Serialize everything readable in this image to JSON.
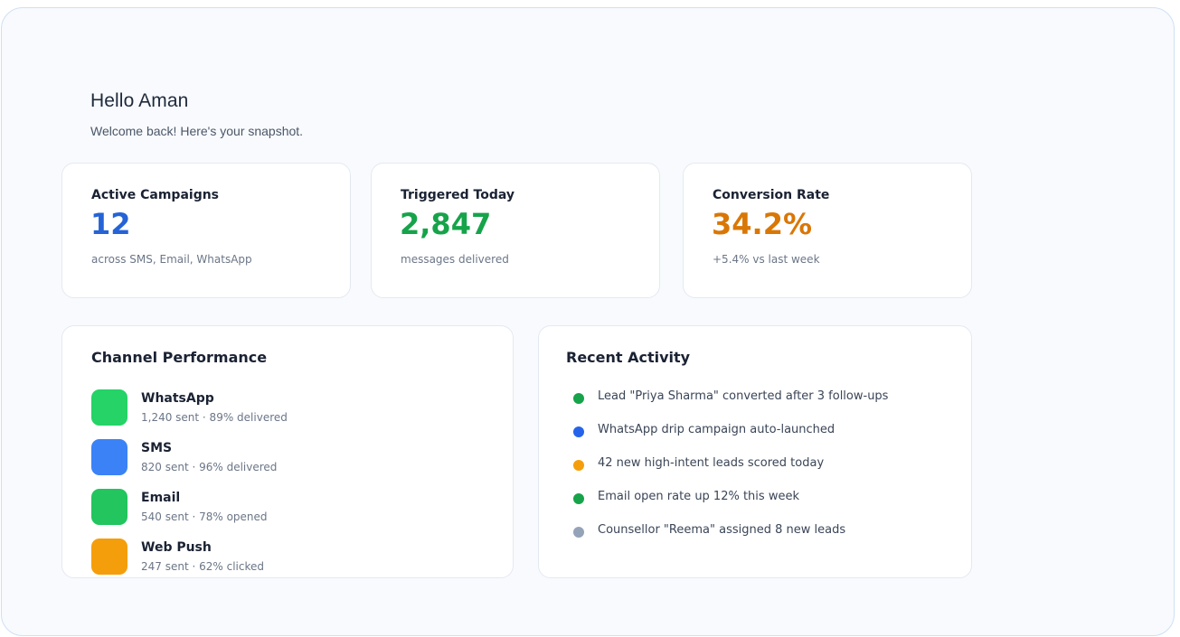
{
  "header": {
    "greeting": "Hello Aman",
    "subtitle": "Welcome back! Here's your snapshot."
  },
  "stats": [
    {
      "label": "Active Campaigns",
      "value": "12",
      "sub": "across SMS, Email, WhatsApp",
      "color": "#2563d6"
    },
    {
      "label": "Triggered Today",
      "value": "2,847",
      "sub": "messages delivered",
      "color": "#16a34a"
    },
    {
      "label": "Conversion Rate",
      "value": "34.2%",
      "sub": "+5.4% vs last week",
      "color": "#d97706"
    }
  ],
  "channels": {
    "title": "Channel Performance",
    "items": [
      {
        "name": "WhatsApp",
        "stats": "1,240 sent · 89% delivered",
        "color": "#25d366"
      },
      {
        "name": "SMS",
        "stats": "820 sent · 96% delivered",
        "color": "#3b82f6"
      },
      {
        "name": "Email",
        "stats": "540 sent · 78% opened",
        "color": "#22c55e"
      },
      {
        "name": "Web Push",
        "stats": "247 sent · 62% clicked",
        "color": "#f59e0b"
      }
    ]
  },
  "activity": {
    "title": "Recent Activity",
    "items": [
      {
        "text": "Lead \"Priya Sharma\" converted after 3 follow-ups",
        "color": "#16a34a"
      },
      {
        "text": "WhatsApp drip campaign auto-launched",
        "color": "#2563eb"
      },
      {
        "text": "42 new high-intent leads scored today",
        "color": "#f59e0b"
      },
      {
        "text": "Email open rate up 12% this week",
        "color": "#16a34a"
      },
      {
        "text": "Counsellor \"Reema\" assigned 8 new leads",
        "color": "#94a3b8"
      }
    ]
  }
}
